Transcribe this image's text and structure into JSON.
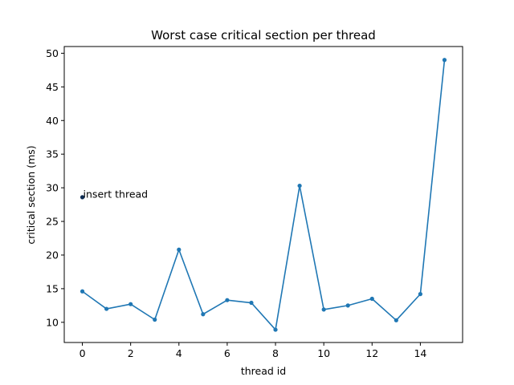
{
  "chart_data": {
    "type": "line",
    "title": "Worst case critical section per thread",
    "xlabel": "thread id",
    "ylabel": "critical section (ms)",
    "xlim": [
      -0.75,
      15.75
    ],
    "ylim": [
      7.0,
      51.0
    ],
    "xticks": [
      0,
      2,
      4,
      6,
      8,
      10,
      12,
      14
    ],
    "yticks": [
      10,
      15,
      20,
      25,
      30,
      35,
      40,
      45,
      50
    ],
    "grid": false,
    "series": [
      {
        "x": [
          0,
          1,
          2,
          3,
          4,
          5,
          6,
          7,
          8,
          9,
          10,
          11,
          12,
          13,
          14,
          15
        ],
        "values": [
          14.6,
          12.0,
          12.7,
          10.4,
          20.8,
          11.2,
          13.3,
          12.9,
          8.9,
          30.3,
          11.9,
          12.5,
          13.5,
          10.3,
          14.2,
          49.0
        ],
        "color": "#1f77b4"
      }
    ],
    "annotations": [
      {
        "x": 0,
        "y": 28.6,
        "text": "insert thread",
        "marker_color": "#0d2b52"
      }
    ]
  }
}
